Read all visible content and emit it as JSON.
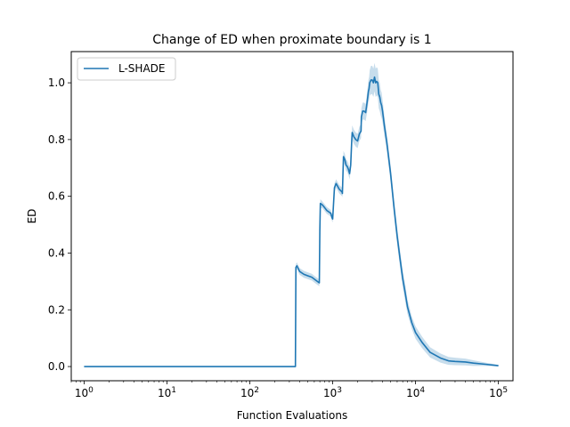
{
  "chart_data": {
    "type": "line",
    "title": "Change of ED when proximate boundary is 1",
    "xlabel": "Function Evaluations",
    "ylabel": "ED",
    "xscale": "log",
    "xlim": [
      0.7,
      150000
    ],
    "ylim": [
      -0.05,
      1.11
    ],
    "x_ticks": [
      {
        "value": 1,
        "base": "10",
        "exp": "0"
      },
      {
        "value": 10,
        "base": "10",
        "exp": "1"
      },
      {
        "value": 100,
        "base": "10",
        "exp": "2"
      },
      {
        "value": 1000,
        "base": "10",
        "exp": "3"
      },
      {
        "value": 10000,
        "base": "10",
        "exp": "4"
      },
      {
        "value": 100000,
        "base": "10",
        "exp": "5"
      }
    ],
    "y_ticks": [
      {
        "value": 0.0,
        "label": "0.0"
      },
      {
        "value": 0.2,
        "label": "0.2"
      },
      {
        "value": 0.4,
        "label": "0.4"
      },
      {
        "value": 0.6,
        "label": "0.6"
      },
      {
        "value": 0.8,
        "label": "0.8"
      },
      {
        "value": 1.0,
        "label": "1.0"
      }
    ],
    "grid": false,
    "legend_position": "top-left",
    "series": [
      {
        "name": "L-SHADE",
        "color": "#1f77b4",
        "x": [
          1,
          10,
          100,
          355,
          360,
          370,
          400,
          450,
          500,
          560,
          620,
          690,
          700,
          710,
          750,
          800,
          850,
          900,
          950,
          960,
          980,
          1000,
          1050,
          1100,
          1150,
          1200,
          1250,
          1300,
          1310,
          1350,
          1400,
          1450,
          1500,
          1550,
          1600,
          1650,
          1700,
          1720,
          1800,
          1900,
          2000,
          2100,
          2200,
          2220,
          2300,
          2400,
          2500,
          2600,
          2700,
          2750,
          2800,
          2900,
          3000,
          3100,
          3200,
          3300,
          3400,
          3500,
          3600,
          3700,
          3800,
          3900,
          4000,
          4200,
          4500,
          5000,
          5500,
          6000,
          6500,
          7000,
          7500,
          8000,
          9000,
          10000,
          12000,
          15000,
          20000,
          25000,
          30000,
          40000,
          50000,
          70000,
          100000
        ],
        "y": [
          0,
          0,
          0,
          0,
          0.35,
          0.355,
          0.335,
          0.325,
          0.32,
          0.315,
          0.305,
          0.295,
          0.48,
          0.575,
          0.57,
          0.56,
          0.55,
          0.545,
          0.54,
          0.535,
          0.525,
          0.52,
          0.63,
          0.645,
          0.635,
          0.625,
          0.62,
          0.615,
          0.61,
          0.74,
          0.73,
          0.71,
          0.705,
          0.695,
          0.68,
          0.71,
          0.8,
          0.825,
          0.81,
          0.8,
          0.795,
          0.82,
          0.83,
          0.88,
          0.9,
          0.9,
          0.895,
          0.93,
          0.97,
          0.98,
          1.0,
          1.01,
          1.01,
          1.0,
          1.02,
          1.0,
          1.005,
          1.0,
          0.96,
          0.95,
          0.93,
          0.92,
          0.9,
          0.85,
          0.79,
          0.68,
          0.56,
          0.46,
          0.38,
          0.31,
          0.26,
          0.21,
          0.155,
          0.12,
          0.085,
          0.05,
          0.03,
          0.02,
          0.018,
          0.016,
          0.012,
          0.008,
          0.003
        ],
        "band": [
          0,
          0,
          0,
          0,
          0.012,
          0.012,
          0.012,
          0.012,
          0.012,
          0.012,
          0.012,
          0.012,
          0.015,
          0.015,
          0.012,
          0.012,
          0.012,
          0.012,
          0.012,
          0.012,
          0.012,
          0.012,
          0.015,
          0.015,
          0.015,
          0.015,
          0.015,
          0.015,
          0.015,
          0.02,
          0.02,
          0.02,
          0.02,
          0.02,
          0.02,
          0.02,
          0.025,
          0.025,
          0.025,
          0.025,
          0.025,
          0.025,
          0.025,
          0.03,
          0.03,
          0.03,
          0.03,
          0.035,
          0.04,
          0.04,
          0.045,
          0.05,
          0.05,
          0.05,
          0.05,
          0.05,
          0.05,
          0.05,
          0.05,
          0.05,
          0.045,
          0.045,
          0.04,
          0.035,
          0.03,
          0.03,
          0.03,
          0.03,
          0.03,
          0.03,
          0.03,
          0.025,
          0.022,
          0.022,
          0.02,
          0.018,
          0.016,
          0.014,
          0.013,
          0.012,
          0.01,
          0.006,
          0.003
        ]
      }
    ]
  }
}
